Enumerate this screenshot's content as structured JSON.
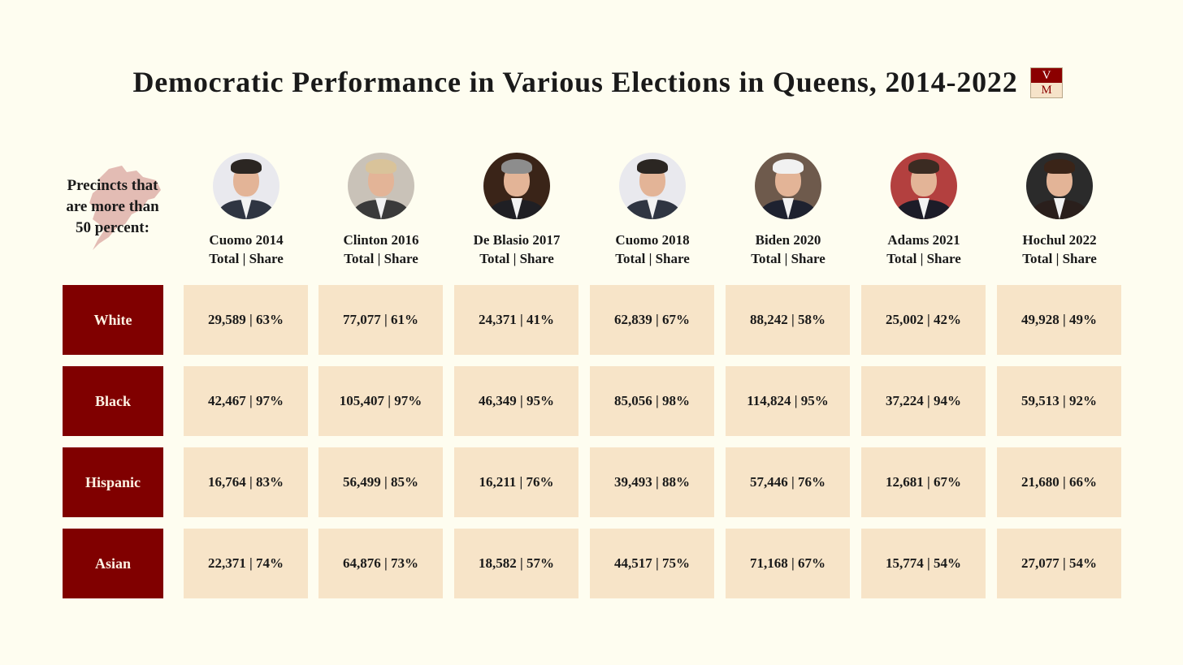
{
  "title": "Democratic Performance in Various Elections in Queens, 2014-2022",
  "logo": {
    "top": "V",
    "bottom": "M"
  },
  "row_header": "Precincts that are more than 50 percent:",
  "subheader": "Total | Share",
  "colors": {
    "background": "#fefdf0",
    "row_label_bg": "#800000",
    "cell_bg": "#f7e4c8"
  },
  "chart_data": {
    "type": "table",
    "title": "Democratic Performance in Various Elections in Queens, 2014-2022",
    "columns": [
      {
        "name": "Cuomo 2014",
        "icon": "cuomo-photo"
      },
      {
        "name": "Clinton 2016",
        "icon": "clinton-photo"
      },
      {
        "name": "De Blasio 2017",
        "icon": "de-blasio-photo"
      },
      {
        "name": "Cuomo 2018",
        "icon": "cuomo-photo"
      },
      {
        "name": "Biden 2020",
        "icon": "biden-photo"
      },
      {
        "name": "Adams 2021",
        "icon": "adams-photo"
      },
      {
        "name": "Hochul 2022",
        "icon": "hochul-photo"
      }
    ],
    "rows": [
      {
        "label": "White",
        "cells": [
          "29,589 | 63%",
          "77,077 | 61%",
          "24,371 | 41%",
          "62,839 | 67%",
          "88,242 | 58%",
          "25,002 | 42%",
          "49,928 | 49%"
        ]
      },
      {
        "label": "Black",
        "cells": [
          "42,467 | 97%",
          "105,407 | 97%",
          "46,349 | 95%",
          "85,056 | 98%",
          "114,824 | 95%",
          "37,224 | 94%",
          "59,513 | 92%"
        ]
      },
      {
        "label": "Hispanic",
        "cells": [
          "16,764 | 83%",
          "56,499 | 85%",
          "16,211 | 76%",
          "39,493 | 88%",
          "57,446 | 76%",
          "12,681 | 67%",
          "21,680 | 66%"
        ]
      },
      {
        "label": "Asian",
        "cells": [
          "22,371 | 74%",
          "64,876 | 73%",
          "18,582 | 57%",
          "44,517 | 75%",
          "71,168 | 67%",
          "15,774 | 54%",
          "27,077 | 54%"
        ]
      }
    ]
  }
}
